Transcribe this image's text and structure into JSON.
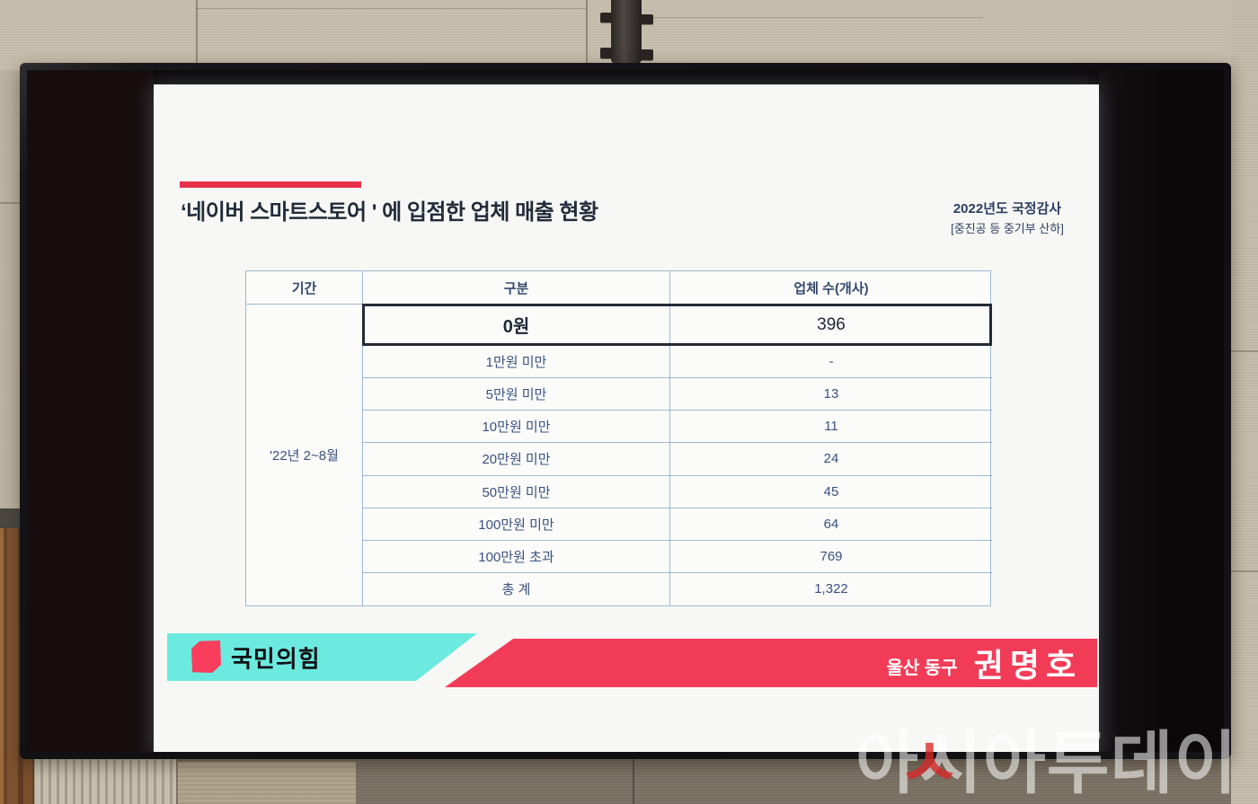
{
  "scene": {
    "description": "Photo of a wall-mounted TV showing a parliamentary audit presentation slide",
    "watermark": {
      "text": "아시아투데이",
      "accent_char": "ㅅ",
      "accent_color": "#d82828"
    }
  },
  "slide": {
    "title": "‘네이버 스마트스토어 ' 에 입점한 업체 매출 현황",
    "meta_line1": "2022년도 국정감사",
    "meta_line2": "[중진공 등 중기부 산하]",
    "accent_bar_color": "#e73049",
    "table": {
      "headers": [
        "기간",
        "구분",
        "업체 수(개사)"
      ],
      "period": "'22년 2~8월",
      "rows": [
        {
          "label": "0원",
          "value": "396",
          "highlight": true
        },
        {
          "label": "1만원 미만",
          "value": "-"
        },
        {
          "label": "5만원 미만",
          "value": "13"
        },
        {
          "label": "10만원 미만",
          "value": "11"
        },
        {
          "label": "20만원 미만",
          "value": "24"
        },
        {
          "label": "50만원 미만",
          "value": "45"
        },
        {
          "label": "100만원 미만",
          "value": "64"
        },
        {
          "label": "100만원 초과",
          "value": "769"
        },
        {
          "label": "총 계",
          "value": "1,322"
        }
      ]
    },
    "footer": {
      "party_name": "국민의힘",
      "party_color_teal": "#6ceadf",
      "party_logo_color": "#f83e5c",
      "banner_red": "#f23b57",
      "district": "울산 동구",
      "member_name": "권명호"
    }
  }
}
